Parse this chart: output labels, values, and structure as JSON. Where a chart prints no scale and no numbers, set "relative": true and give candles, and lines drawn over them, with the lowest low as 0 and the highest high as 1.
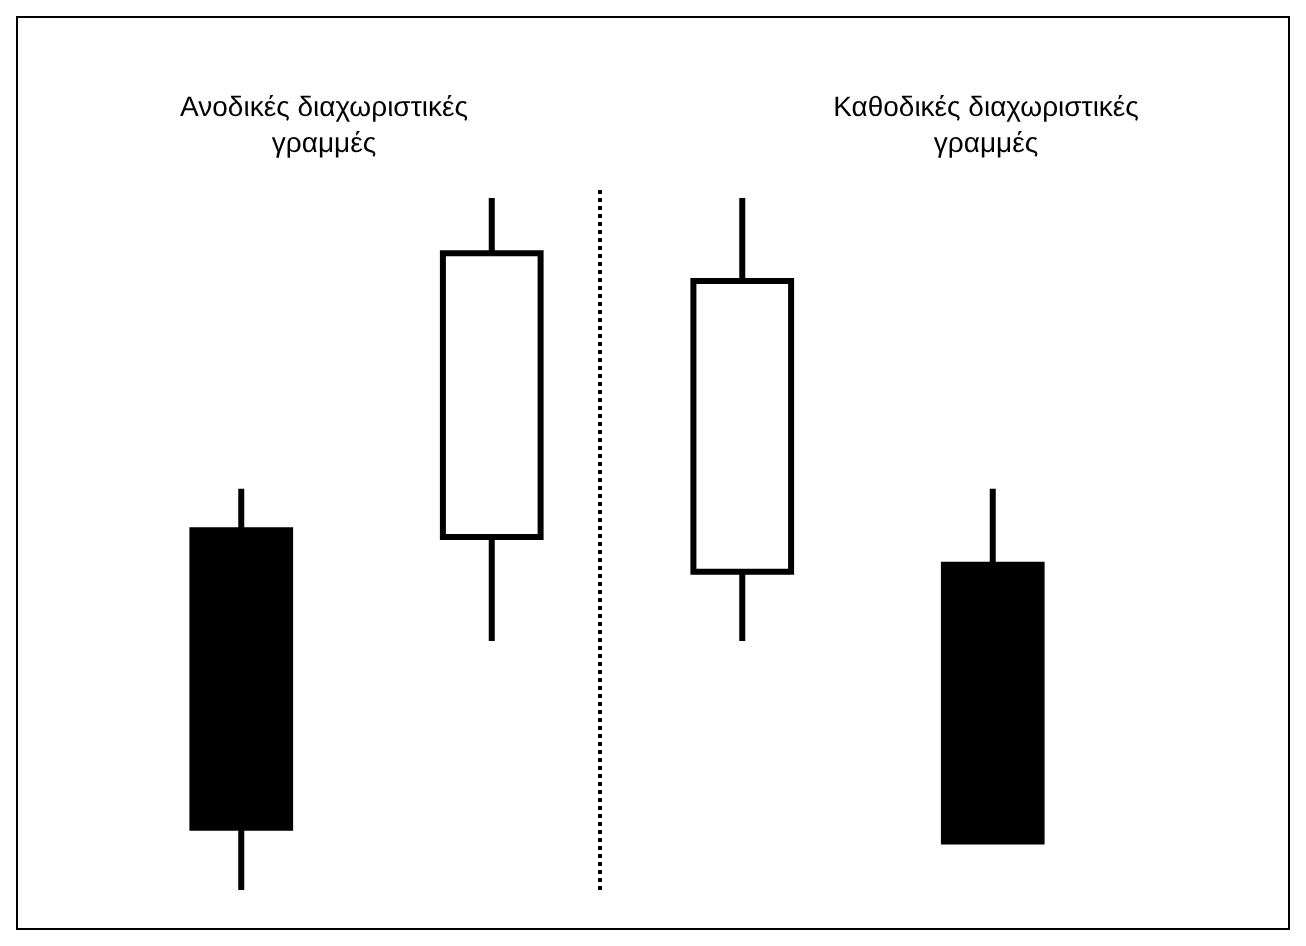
{
  "chart_data": {
    "type": "candlestick",
    "relative": true,
    "categories": [
      null,
      null,
      null,
      null
    ],
    "ohlc": [
      [
        0.52,
        0.58,
        0,
        0.09
      ],
      [
        0.51,
        1,
        0.36,
        0.92
      ],
      [
        0.46,
        1,
        0.36,
        0.88
      ],
      [
        0.47,
        0.58,
        0.07,
        0.07
      ]
    ],
    "colors": [
      "#000000",
      "#ffffff",
      "#ffffff",
      "#000000"
    ],
    "annotations": [
      "Ανοδικές διαχωριστικές γραμμές",
      "Καθοδικές διαχωριστικές γραμμές"
    ]
  }
}
